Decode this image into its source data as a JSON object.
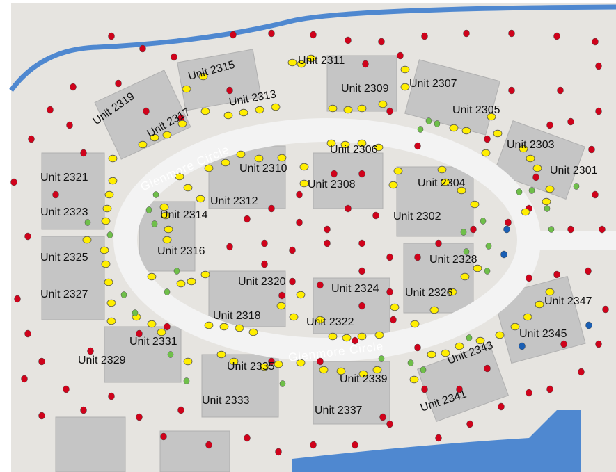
{
  "units": [
    "Unit 2311",
    "Unit 2315",
    "Unit 2319",
    "Unit 2317",
    "Unit 2313",
    "Unit 2309",
    "Unit 2307",
    "Unit 2305",
    "Unit 2303",
    "Unit 2301",
    "Unit 2306",
    "Unit 2310",
    "Unit 2308",
    "Unit 2304",
    "Unit 2302",
    "Unit 2321",
    "Unit 2323",
    "Unit 2312",
    "Unit 2314",
    "Unit 2316",
    "Unit 2325",
    "Unit 2328",
    "Unit 2320",
    "Unit 2324",
    "Unit 2326",
    "Unit 2327",
    "Unit 2347",
    "Unit 2318",
    "Unit 2322",
    "Unit 2345",
    "Unit 2331",
    "Unit 2343",
    "Unit 2329",
    "Unit 2335",
    "Unit 2339",
    "Unit 2341",
    "Unit 2333",
    "Unit 2337"
  ],
  "streets": [
    "Glenmore Circle",
    "Glenmore Circle"
  ]
}
